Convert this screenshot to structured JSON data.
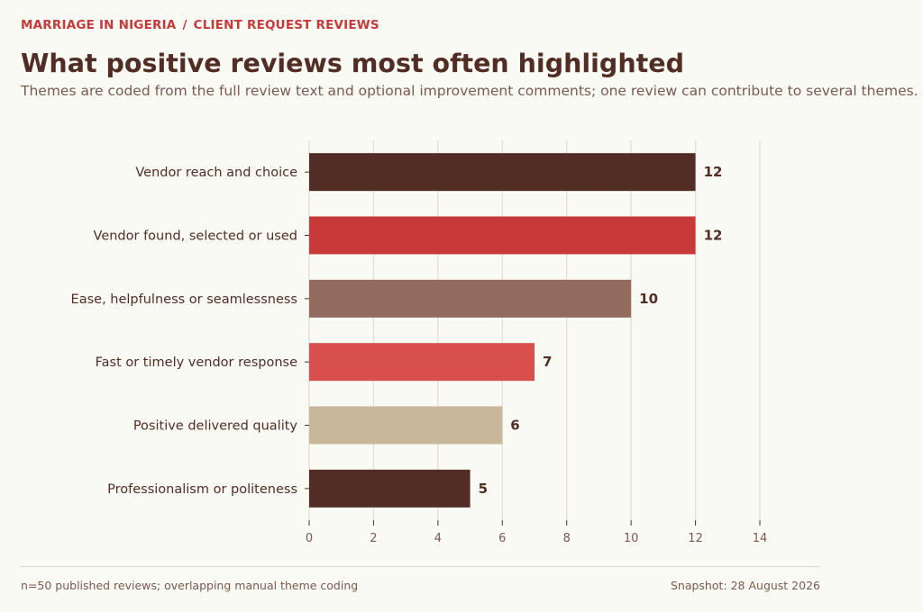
{
  "header": {
    "eyebrow_left": "MARRIAGE IN NIGERIA",
    "eyebrow_sep": "/",
    "eyebrow_right": "CLIENT REQUEST REVIEWS",
    "title": "What positive reviews most often highlighted",
    "subtitle": "Themes are coded from the full review text and optional improvement comments; one review can contribute to several themes."
  },
  "chart_data": {
    "type": "bar",
    "orientation": "horizontal",
    "categories": [
      "Vendor reach and choice",
      "Vendor found, selected or used",
      "Ease, helpfulness or seamlessness",
      "Fast or timely vendor response",
      "Positive delivered quality",
      "Professionalism or politeness"
    ],
    "values": [
      12,
      12,
      10,
      7,
      6,
      5
    ],
    "colors": [
      "#522d26",
      "#c8393a",
      "#936a5e",
      "#d94f4d",
      "#c9b79c",
      "#522d26"
    ],
    "xlim": [
      0,
      14
    ],
    "xticks": [
      0,
      2,
      4,
      6,
      8,
      10,
      12,
      14
    ],
    "grid": true,
    "data_labels": true
  },
  "footer": {
    "note": "n=50 published reviews; overlapping manual theme coding",
    "snapshot": "Snapshot: 28 August 2026"
  }
}
